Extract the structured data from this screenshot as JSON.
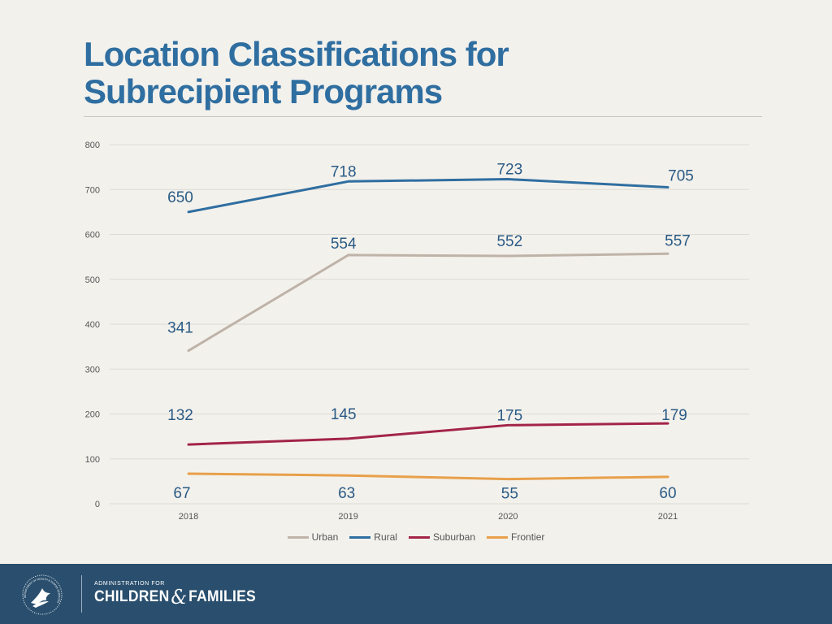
{
  "slide": {
    "title_line1": "Location Classifications for",
    "title_line2": "Subrecipient Programs"
  },
  "chart_data": {
    "type": "line",
    "title": "",
    "xlabel": "",
    "ylabel": "",
    "categories": [
      "2018",
      "2019",
      "2020",
      "2021"
    ],
    "ylim": [
      0,
      800
    ],
    "yticks": [
      0,
      100,
      200,
      300,
      400,
      500,
      600,
      700,
      800
    ],
    "grid": true,
    "legend_position": "bottom",
    "series": [
      {
        "name": "Urban",
        "color": "#bfb3a8",
        "values": [
          341,
          554,
          552,
          557
        ]
      },
      {
        "name": "Rural",
        "color": "#2f6ea0",
        "values": [
          650,
          718,
          723,
          705
        ]
      },
      {
        "name": "Suburban",
        "color": "#a32447",
        "values": [
          132,
          145,
          175,
          179
        ]
      },
      {
        "name": "Frontier",
        "color": "#e8a04a",
        "values": [
          67,
          63,
          55,
          60
        ]
      }
    ],
    "data_label_color": "#2a5b85"
  },
  "footer": {
    "logo_top": "ADMINISTRATION FOR",
    "logo_left": "CHILDREN",
    "logo_amp": "&",
    "logo_right": "FAMILIES",
    "seal_icon": "hhs-eagle-seal-icon",
    "seal_text": "DEPARTMENT OF HEALTH & HUMAN SERVICES USA"
  }
}
